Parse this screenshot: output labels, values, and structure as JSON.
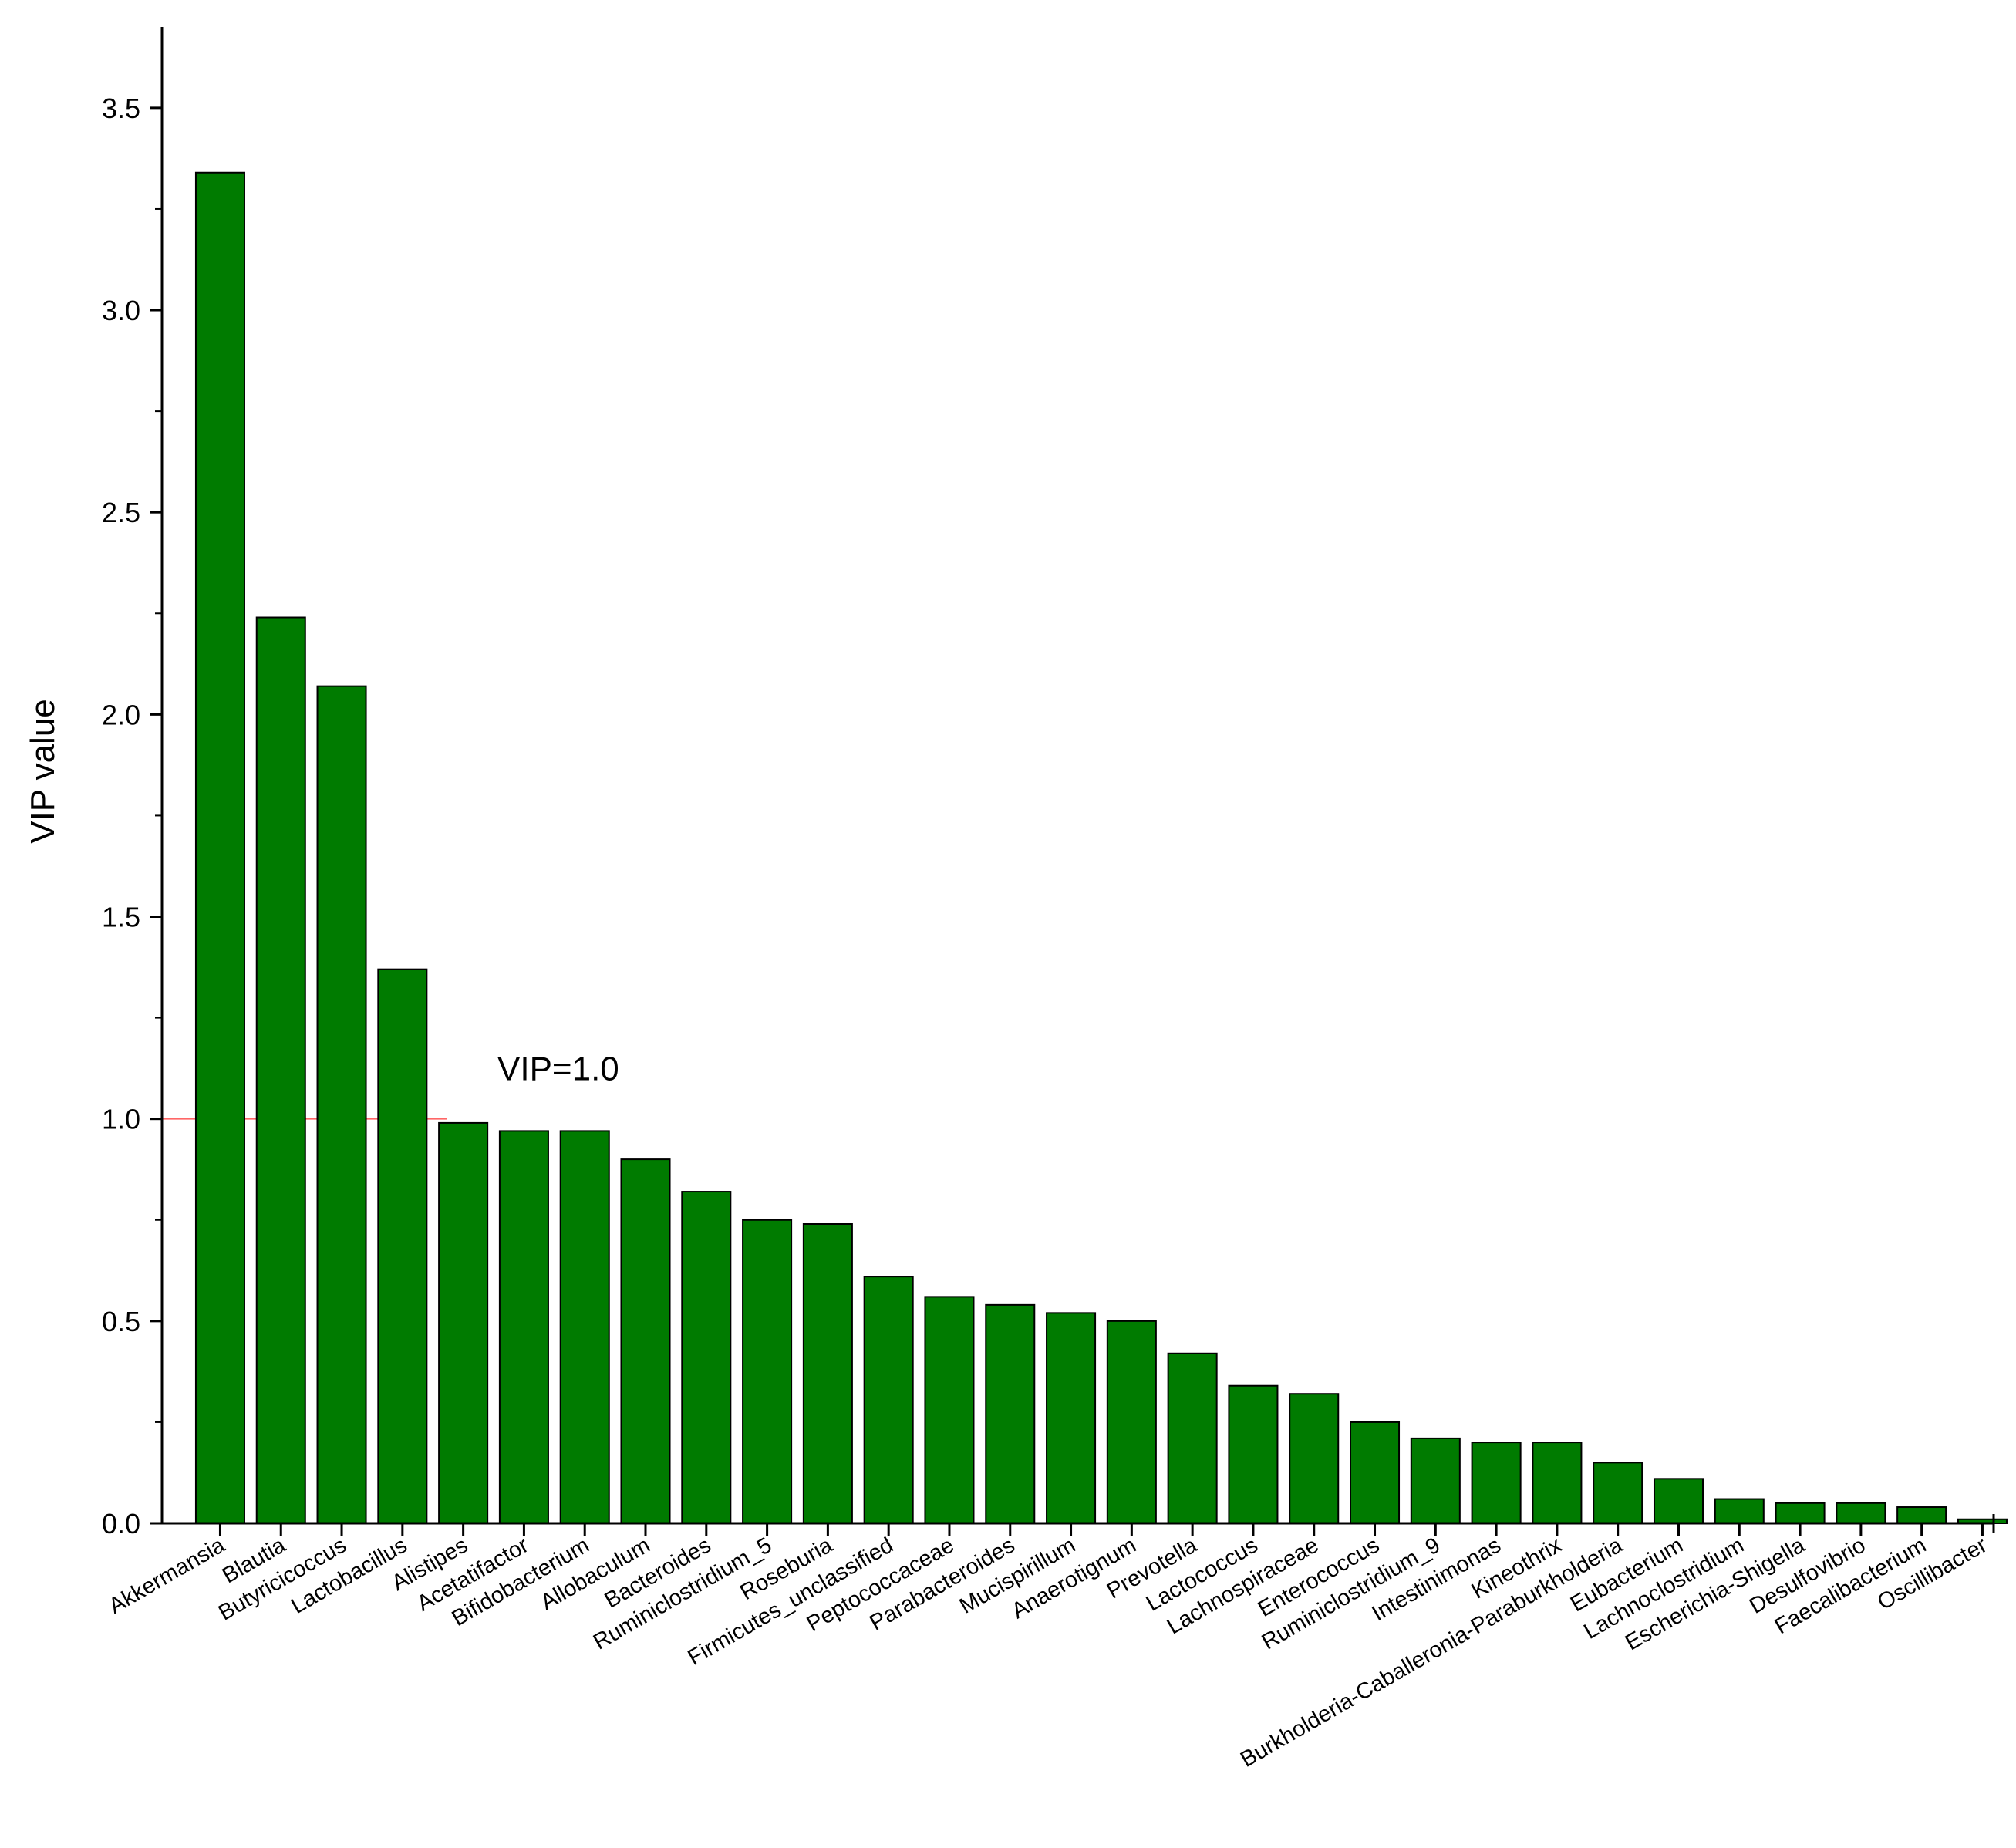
{
  "chart_data": {
    "type": "bar",
    "ylabel": "VIP value",
    "xlabel": "",
    "ylim": [
      0,
      3.7
    ],
    "yticks": [
      "0.0",
      "0.5",
      "1.0",
      "1.5",
      "2.0",
      "2.5",
      "3.0",
      "3.5"
    ],
    "reference_line": {
      "value": 1.0,
      "label": "VIP=1.0",
      "color": "#ff6666"
    },
    "bar_color": "#007b00",
    "categories": [
      "Akkermansia",
      "Blautia",
      "Butyricicoccus",
      "Lactobacillus",
      "Alistipes",
      "Acetatifactor",
      "Bifidobacterium",
      "Allobaculum",
      "Bacteroides",
      "Ruminiclostridium_5",
      "Roseburia",
      "Firmicutes_unclassified",
      "Peptococcaceae",
      "Parabacteroides",
      "Mucispirillum",
      "Anaerotignum",
      "Prevotella",
      "Lactococcus",
      "Lachnospiraceae",
      "Enterococcus",
      "Ruminiclostridium_9",
      "Intestinimonas",
      "Kineothrix",
      "Burkholderia-Caballeronia-Paraburkholderia",
      "Eubacterium",
      "Lachnoclostridium",
      "Escherichia-Shigella",
      "Desulfovibrio",
      "Faecalibacterium",
      "Oscillibacter"
    ],
    "values": [
      3.34,
      2.24,
      2.07,
      1.37,
      0.99,
      0.97,
      0.97,
      0.9,
      0.82,
      0.75,
      0.74,
      0.61,
      0.56,
      0.54,
      0.52,
      0.5,
      0.42,
      0.34,
      0.32,
      0.25,
      0.21,
      0.2,
      0.2,
      0.15,
      0.11,
      0.06,
      0.05,
      0.05,
      0.04,
      0.01
    ]
  }
}
